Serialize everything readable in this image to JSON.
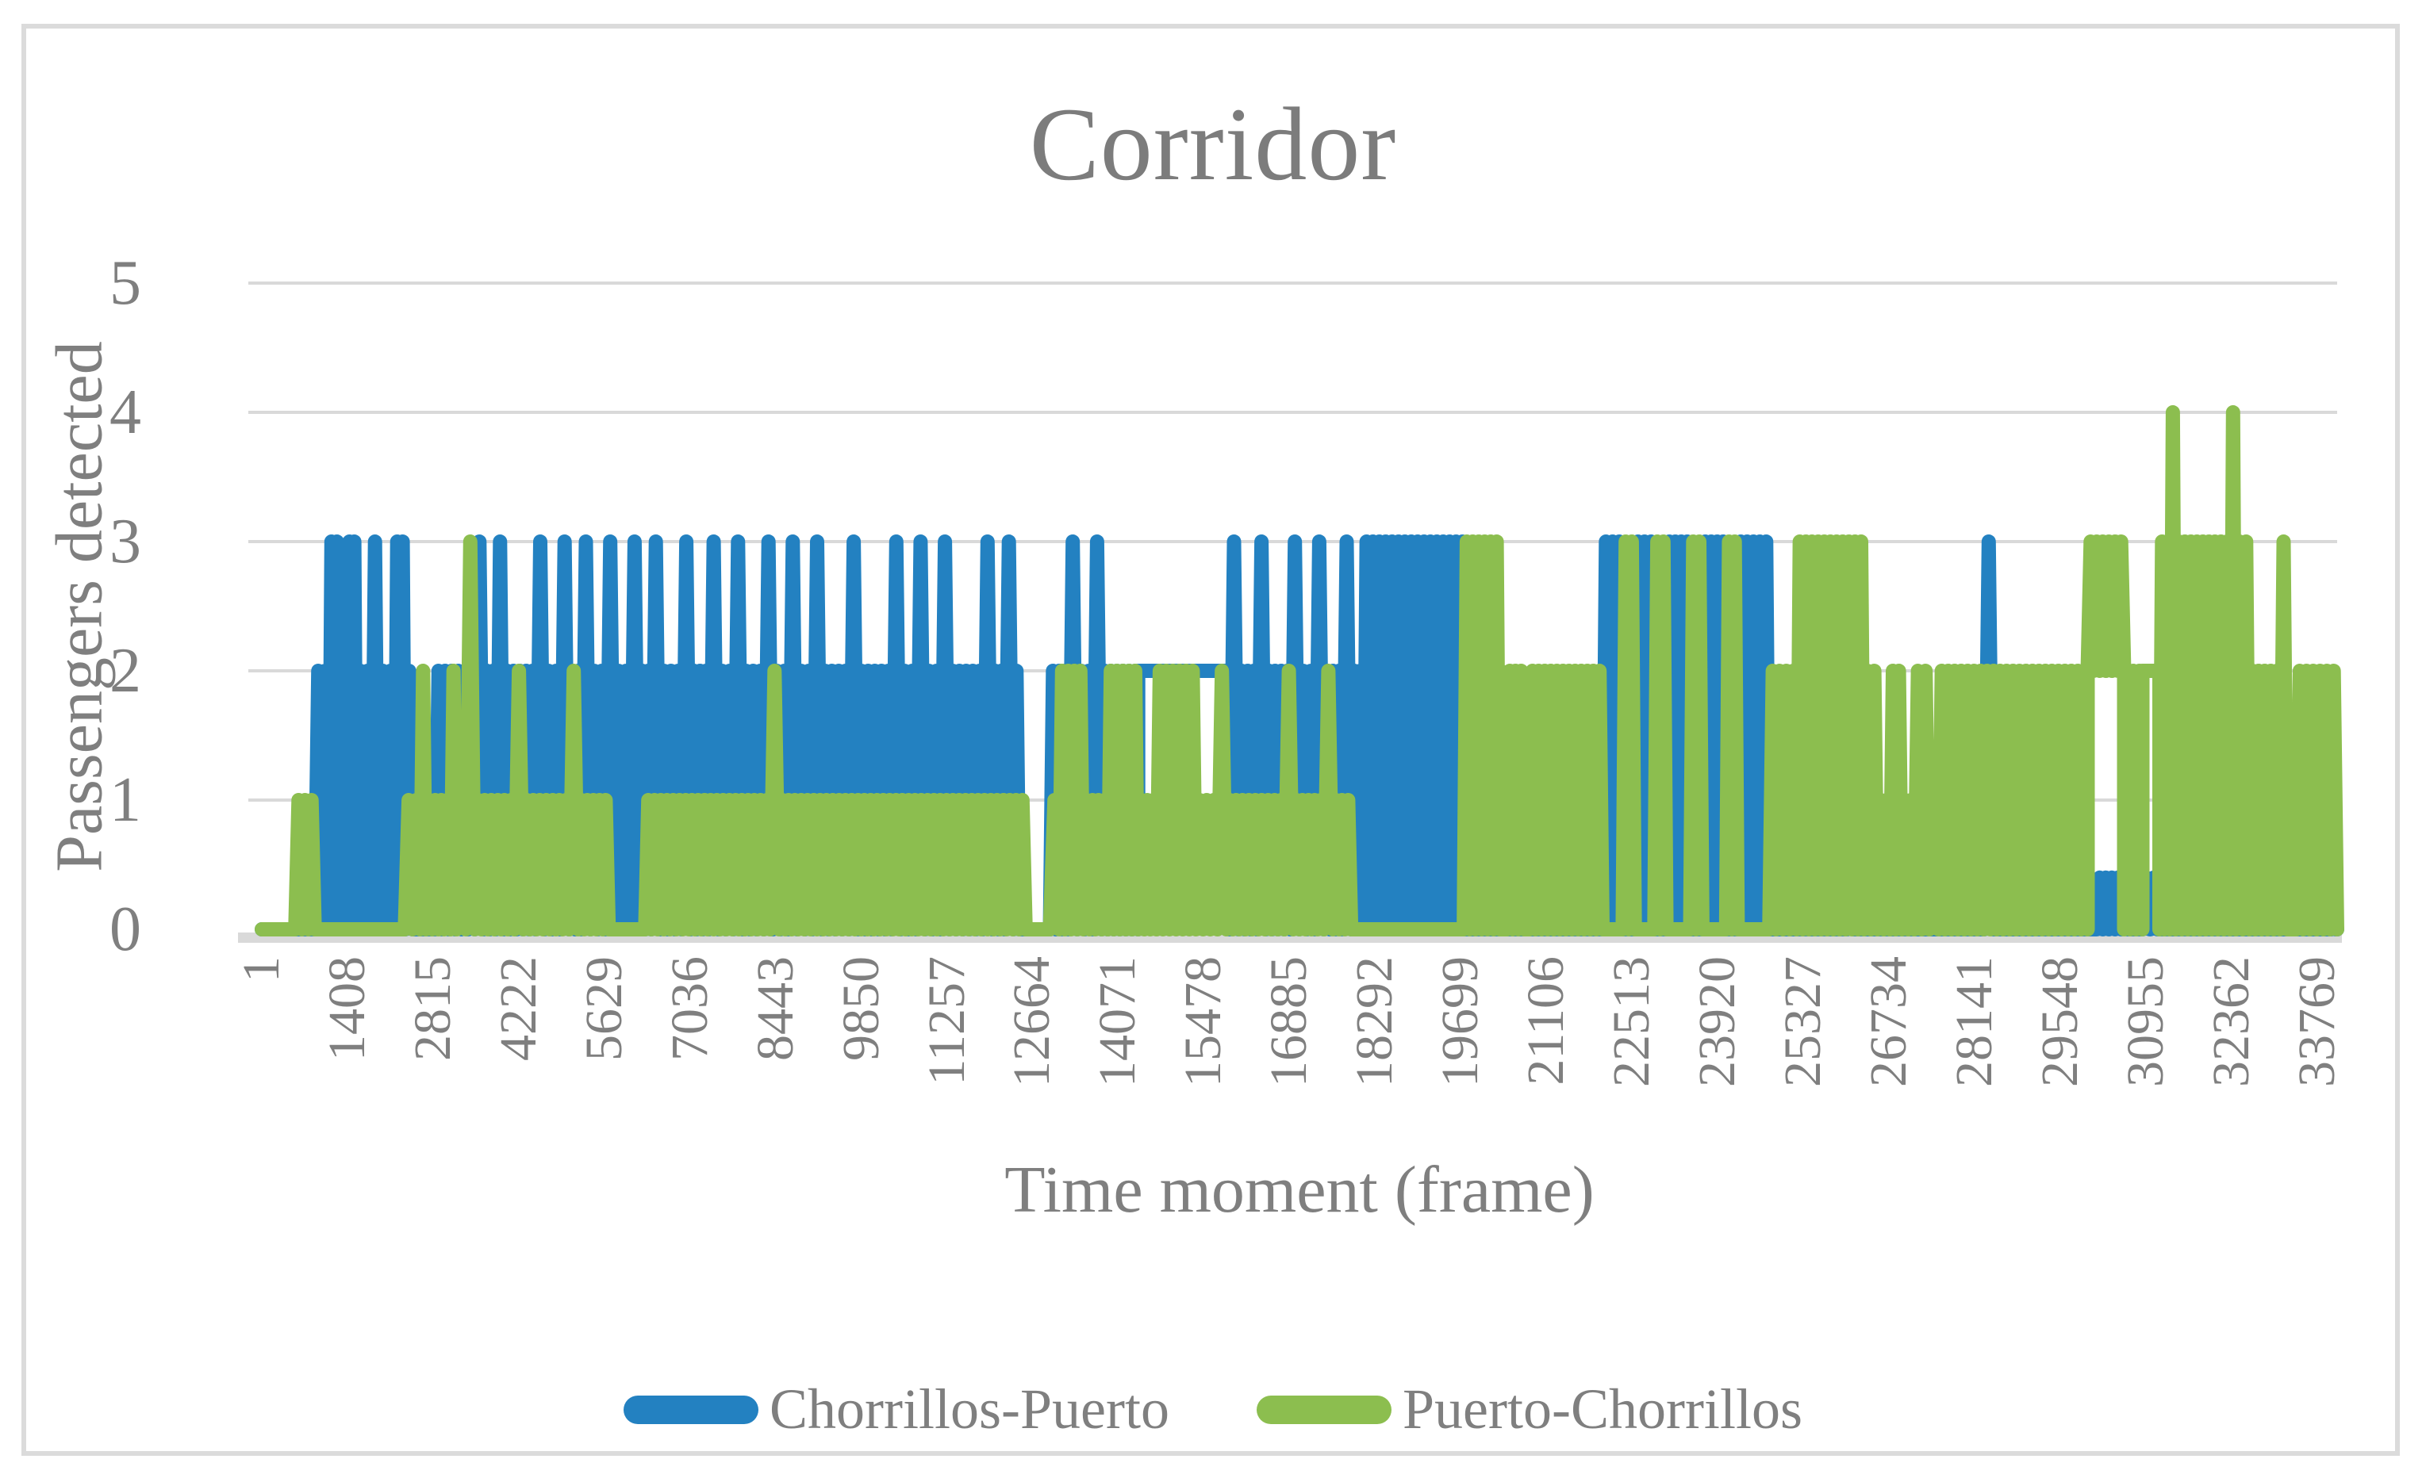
{
  "figure": {
    "title": "Corridor"
  },
  "colors": {
    "series_blue": "#2381C1",
    "series_green": "#8CBE4F",
    "gridline": "#D9D9D9",
    "axis_strip": "#D9D9D9",
    "frame_border": "#DBDBDB",
    "text_gray": "#7F7F7F"
  },
  "chart_data": {
    "type": "line",
    "title": "Corridor",
    "xlabel": "Time moment (frame)",
    "ylabel": "Passengers detected",
    "xlim": [
      1,
      34100
    ],
    "ylim": [
      0,
      5
    ],
    "grid": "horizontal",
    "legend_position": "bottom",
    "x_ticks": [
      1,
      1408,
      2815,
      4222,
      5629,
      7036,
      8443,
      9850,
      11257,
      12664,
      14071,
      15478,
      16885,
      18292,
      19699,
      21106,
      22513,
      23920,
      25327,
      26734,
      28141,
      29548,
      30955,
      32362,
      33769
    ],
    "y_ticks": [
      0,
      1,
      2,
      3,
      4,
      5
    ],
    "series_note": "Dense per-frame passenger counts. Each segment is [start_frame, end_frame, min_value, max_value]; min==max means the count holds steady, min<max means the count oscillates rapidly between the two levels (renders as a solid band).",
    "series": [
      {
        "name": "Chorrillos-Puerto",
        "color": "#2381C1",
        "segments": [
          [
            0,
            870,
            0,
            0
          ],
          [
            870,
            1100,
            0,
            2
          ],
          [
            1100,
            1280,
            0,
            3
          ],
          [
            1280,
            1400,
            0,
            2
          ],
          [
            1400,
            1560,
            0,
            3
          ],
          [
            1560,
            1800,
            0,
            2
          ],
          [
            1800,
            1920,
            0,
            3
          ],
          [
            1920,
            2180,
            0,
            2
          ],
          [
            2180,
            2360,
            0,
            3
          ],
          [
            2360,
            2480,
            0,
            2
          ],
          [
            2480,
            2850,
            0,
            0
          ],
          [
            2850,
            3500,
            0,
            2
          ],
          [
            3500,
            3650,
            0,
            3
          ],
          [
            3650,
            3850,
            0,
            2
          ],
          [
            3850,
            3980,
            0,
            3
          ],
          [
            3980,
            4500,
            0,
            2
          ],
          [
            4500,
            4650,
            0,
            3
          ],
          [
            4650,
            4900,
            0,
            2
          ],
          [
            4900,
            5050,
            0,
            3
          ],
          [
            5050,
            5250,
            0,
            2
          ],
          [
            5250,
            5400,
            0,
            3
          ],
          [
            5400,
            5650,
            0,
            2
          ],
          [
            5650,
            5800,
            0,
            3
          ],
          [
            5800,
            6050,
            0,
            2
          ],
          [
            6050,
            6200,
            0,
            3
          ],
          [
            6200,
            6400,
            0,
            2
          ],
          [
            6400,
            6550,
            0,
            3
          ],
          [
            6550,
            6900,
            0,
            2
          ],
          [
            6900,
            7050,
            0,
            3
          ],
          [
            7050,
            7350,
            0,
            2
          ],
          [
            7350,
            7500,
            0,
            3
          ],
          [
            7500,
            7750,
            0,
            2
          ],
          [
            7750,
            7900,
            0,
            3
          ],
          [
            7900,
            8250,
            0,
            2
          ],
          [
            8250,
            8400,
            0,
            3
          ],
          [
            8400,
            8650,
            0,
            2
          ],
          [
            8650,
            8800,
            0,
            3
          ],
          [
            8800,
            9050,
            0,
            2
          ],
          [
            9050,
            9200,
            0,
            3
          ],
          [
            9200,
            9650,
            0,
            2
          ],
          [
            9650,
            9800,
            0,
            3
          ],
          [
            9800,
            10350,
            0,
            2
          ],
          [
            10350,
            10500,
            0,
            3
          ],
          [
            10500,
            10750,
            0,
            2
          ],
          [
            10750,
            10900,
            0,
            3
          ],
          [
            10900,
            11150,
            0,
            2
          ],
          [
            11150,
            11300,
            0,
            3
          ],
          [
            11300,
            11850,
            0,
            2
          ],
          [
            11850,
            12000,
            0,
            3
          ],
          [
            12000,
            12200,
            0,
            2
          ],
          [
            12200,
            12350,
            0,
            3
          ],
          [
            12350,
            12450,
            0,
            2
          ],
          [
            12450,
            12950,
            0,
            0
          ],
          [
            12950,
            13250,
            0,
            2
          ],
          [
            13250,
            13400,
            0,
            3
          ],
          [
            13400,
            13650,
            0,
            2
          ],
          [
            13650,
            13800,
            0,
            3
          ],
          [
            13800,
            14400,
            0,
            2
          ],
          [
            14400,
            15900,
            2,
            2
          ],
          [
            15900,
            16050,
            0,
            3
          ],
          [
            16050,
            16350,
            0,
            2
          ],
          [
            16350,
            16500,
            0,
            3
          ],
          [
            16500,
            16900,
            0,
            2
          ],
          [
            16900,
            17050,
            0,
            3
          ],
          [
            17050,
            17300,
            0,
            2
          ],
          [
            17300,
            17450,
            0,
            3
          ],
          [
            17450,
            17750,
            0,
            2
          ],
          [
            17750,
            17900,
            0,
            3
          ],
          [
            17900,
            18100,
            0,
            2
          ],
          [
            18100,
            19780,
            0,
            3
          ],
          [
            19780,
            20370,
            0,
            0
          ],
          [
            20370,
            20460,
            0,
            1
          ],
          [
            20460,
            20740,
            0,
            0
          ],
          [
            20740,
            20830,
            0,
            1
          ],
          [
            20830,
            22030,
            0,
            0
          ],
          [
            22030,
            22360,
            0,
            3
          ],
          [
            22360,
            22560,
            0,
            0
          ],
          [
            22560,
            22880,
            0,
            3
          ],
          [
            22880,
            23080,
            0,
            0
          ],
          [
            23080,
            23470,
            0,
            3
          ],
          [
            23470,
            23670,
            0,
            0
          ],
          [
            23670,
            24060,
            0,
            3
          ],
          [
            24060,
            24250,
            0,
            0
          ],
          [
            24250,
            24770,
            0,
            3
          ],
          [
            24770,
            26050,
            0,
            0
          ],
          [
            26050,
            26150,
            0,
            1
          ],
          [
            26150,
            28300,
            0,
            0
          ],
          [
            28300,
            28450,
            0,
            3
          ],
          [
            28450,
            30150,
            0,
            0
          ],
          [
            30150,
            30650,
            0,
            0.4
          ],
          [
            30650,
            30900,
            0,
            0
          ],
          [
            30900,
            31150,
            0,
            0.4
          ],
          [
            31150,
            33280,
            0,
            0
          ],
          [
            33280,
            33360,
            0,
            1
          ],
          [
            33360,
            34000,
            0,
            0
          ],
          [
            34000,
            34080,
            0,
            0.6
          ],
          [
            34080,
            34100,
            0,
            0
          ]
        ]
      },
      {
        "name": "Puerto-Chorrillos",
        "color": "#8CBE4F",
        "segments": [
          [
            0,
            550,
            0,
            0
          ],
          [
            550,
            870,
            0,
            1
          ],
          [
            870,
            2350,
            0,
            0
          ],
          [
            2350,
            2600,
            0,
            1
          ],
          [
            2600,
            2700,
            0,
            2
          ],
          [
            2700,
            3100,
            0,
            1
          ],
          [
            3100,
            3200,
            0,
            2
          ],
          [
            3200,
            3350,
            0,
            1
          ],
          [
            3350,
            3500,
            0,
            3
          ],
          [
            3500,
            4150,
            0,
            1
          ],
          [
            4150,
            4300,
            0,
            2
          ],
          [
            4300,
            5050,
            0,
            1
          ],
          [
            5050,
            5200,
            0,
            2
          ],
          [
            5200,
            5700,
            0,
            1
          ],
          [
            5700,
            6300,
            0,
            0
          ],
          [
            6300,
            8350,
            0,
            1
          ],
          [
            8350,
            8500,
            0,
            2
          ],
          [
            8500,
            12550,
            0,
            1
          ],
          [
            12550,
            12950,
            0,
            0
          ],
          [
            12950,
            13100,
            0,
            1
          ],
          [
            13100,
            13500,
            0,
            2
          ],
          [
            13500,
            13900,
            0,
            1
          ],
          [
            13900,
            14400,
            0,
            2
          ],
          [
            14400,
            14700,
            0,
            1
          ],
          [
            14700,
            15350,
            0,
            2
          ],
          [
            15350,
            15700,
            0,
            1
          ],
          [
            15700,
            15850,
            0,
            2
          ],
          [
            15850,
            16800,
            0,
            1
          ],
          [
            16800,
            16950,
            0,
            2
          ],
          [
            16950,
            17450,
            0,
            1
          ],
          [
            17450,
            17600,
            0,
            2
          ],
          [
            17600,
            17900,
            0,
            1
          ],
          [
            17900,
            19750,
            0,
            0
          ],
          [
            19750,
            20340,
            0,
            3
          ],
          [
            20340,
            20370,
            0,
            2
          ],
          [
            20370,
            20460,
            0,
            0
          ],
          [
            20460,
            20740,
            0,
            2
          ],
          [
            20740,
            20830,
            0,
            0
          ],
          [
            20830,
            22030,
            0,
            2
          ],
          [
            22030,
            22360,
            0,
            0
          ],
          [
            22360,
            22560,
            0,
            3
          ],
          [
            22560,
            22880,
            0,
            0
          ],
          [
            22880,
            23080,
            0,
            3
          ],
          [
            23080,
            23470,
            0,
            0
          ],
          [
            23470,
            23670,
            0,
            3
          ],
          [
            23670,
            24060,
            0,
            0
          ],
          [
            24060,
            24250,
            0,
            3
          ],
          [
            24250,
            24770,
            0,
            0
          ],
          [
            24770,
            25220,
            0,
            2
          ],
          [
            25220,
            26330,
            0,
            3
          ],
          [
            26330,
            26550,
            0,
            2
          ],
          [
            26550,
            26750,
            0,
            1
          ],
          [
            26750,
            26950,
            0,
            2
          ],
          [
            26950,
            27150,
            0,
            1
          ],
          [
            27150,
            27400,
            0,
            2
          ],
          [
            27400,
            27550,
            0,
            1
          ],
          [
            27550,
            30000,
            0,
            2
          ],
          [
            30000,
            30600,
            2,
            3
          ],
          [
            30600,
            30900,
            0,
            2
          ],
          [
            30900,
            31180,
            2,
            2
          ],
          [
            31180,
            31350,
            0,
            3
          ],
          [
            31350,
            31450,
            0,
            4
          ],
          [
            31450,
            32340,
            0,
            3
          ],
          [
            32340,
            32440,
            0,
            4
          ],
          [
            32440,
            32660,
            0,
            3
          ],
          [
            32660,
            33160,
            0,
            2
          ],
          [
            33160,
            33280,
            0,
            3
          ],
          [
            33280,
            33430,
            0,
            0
          ],
          [
            33430,
            34100,
            0,
            2
          ]
        ]
      }
    ]
  }
}
